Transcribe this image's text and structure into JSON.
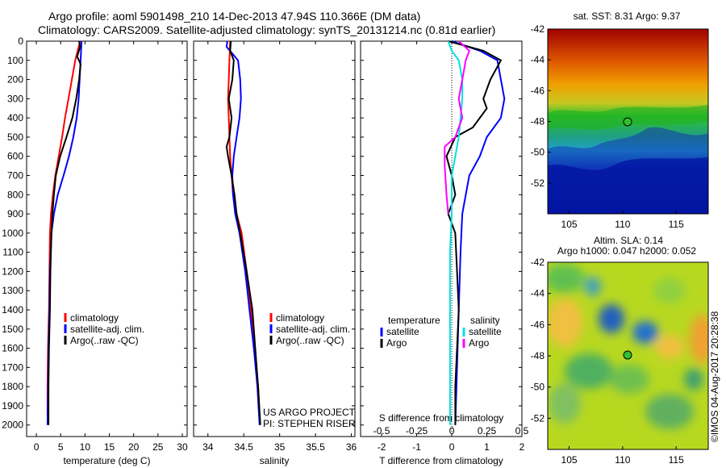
{
  "header": {
    "line1": "Argo profile: aoml 5901498_210 14-Dec-2013 47.94S 110.366E (DM data)",
    "line2": "Climatology: CARS2009. Satellite-adjusted climatology: synTS_20131214.nc (0.81d earlier)"
  },
  "colors": {
    "climatology": "#ff0000",
    "satellite": "#0000ff",
    "argo": "#000000",
    "sat_s": "#00e5e5",
    "argo_s": "#ff00ff"
  },
  "depth_axis": {
    "ticks": [
      0,
      100,
      200,
      300,
      400,
      500,
      600,
      700,
      800,
      900,
      1000,
      1100,
      1200,
      1300,
      1400,
      1500,
      1600,
      1700,
      1800,
      1900,
      2000
    ],
    "range": [
      0,
      2060
    ]
  },
  "chart_data": [
    {
      "type": "line",
      "xlabel": "temperature (deg C)",
      "xticks": [
        "0",
        "5",
        "10",
        "15",
        "20",
        "25",
        "30"
      ],
      "xlim": [
        -2,
        31
      ],
      "legend": [
        "climatology",
        "satellite-adj. clim.",
        "Argo(..raw -QC)"
      ],
      "series": [
        {
          "name": "climatology",
          "color": "red",
          "points": [
            [
              9.0,
              0
            ],
            [
              8.5,
              50
            ],
            [
              8.0,
              100
            ],
            [
              7.3,
              200
            ],
            [
              6.6,
              300
            ],
            [
              5.9,
              400
            ],
            [
              5.3,
              500
            ],
            [
              4.6,
              600
            ],
            [
              3.9,
              700
            ],
            [
              3.4,
              800
            ],
            [
              3.0,
              900
            ],
            [
              2.8,
              1000
            ],
            [
              2.7,
              1200
            ],
            [
              2.6,
              1400
            ],
            [
              2.4,
              1600
            ],
            [
              2.3,
              1800
            ],
            [
              2.3,
              1950
            ]
          ]
        },
        {
          "name": "satellite-adj. clim.",
          "color": "blue",
          "points": [
            [
              9.3,
              0
            ],
            [
              9.2,
              50
            ],
            [
              9.1,
              100
            ],
            [
              8.9,
              200
            ],
            [
              8.7,
              300
            ],
            [
              8.3,
              400
            ],
            [
              7.6,
              500
            ],
            [
              6.7,
              600
            ],
            [
              5.6,
              700
            ],
            [
              4.4,
              800
            ],
            [
              3.6,
              900
            ],
            [
              3.1,
              1000
            ],
            [
              2.8,
              1200
            ],
            [
              2.7,
              1400
            ],
            [
              2.5,
              1600
            ],
            [
              2.4,
              1800
            ],
            [
              2.3,
              2000
            ]
          ]
        },
        {
          "name": "Argo(..raw -QC)",
          "color": "black",
          "points": [
            [
              8.8,
              0
            ],
            [
              9.0,
              30
            ],
            [
              8.4,
              80
            ],
            [
              9.1,
              120
            ],
            [
              8.8,
              200
            ],
            [
              8.2,
              300
            ],
            [
              7.4,
              400
            ],
            [
              6.2,
              500
            ],
            [
              4.9,
              600
            ],
            [
              4.0,
              700
            ],
            [
              3.6,
              800
            ],
            [
              3.3,
              900
            ],
            [
              3.1,
              1000
            ],
            [
              2.9,
              1200
            ],
            [
              2.8,
              1400
            ],
            [
              2.6,
              1600
            ],
            [
              2.5,
              1800
            ],
            [
              2.5,
              2000
            ]
          ]
        }
      ]
    },
    {
      "type": "line",
      "xlabel": "salinity",
      "xticks": [
        "34",
        "34.5",
        "35",
        "35.5",
        "36"
      ],
      "xlim": [
        33.8,
        36.05
      ],
      "legend": [
        "climatology",
        "satellite-adj. clim.",
        "Argo(..raw -QC)"
      ],
      "series": [
        {
          "name": "climatology",
          "color": "red",
          "points": [
            [
              34.31,
              0
            ],
            [
              34.3,
              100
            ],
            [
              34.29,
              200
            ],
            [
              34.28,
              300
            ],
            [
              34.29,
              400
            ],
            [
              34.3,
              500
            ],
            [
              34.31,
              600
            ],
            [
              34.33,
              700
            ],
            [
              34.35,
              800
            ],
            [
              34.4,
              900
            ],
            [
              34.47,
              1000
            ],
            [
              34.54,
              1200
            ],
            [
              34.6,
              1400
            ],
            [
              34.65,
              1600
            ],
            [
              34.7,
              1800
            ],
            [
              34.72,
              1950
            ]
          ]
        },
        {
          "name": "satellite-adj. clim.",
          "color": "blue",
          "points": [
            [
              34.27,
              0
            ],
            [
              34.26,
              30
            ],
            [
              34.33,
              60
            ],
            [
              34.42,
              100
            ],
            [
              34.45,
              200
            ],
            [
              34.46,
              300
            ],
            [
              34.44,
              400
            ],
            [
              34.4,
              500
            ],
            [
              34.36,
              600
            ],
            [
              34.34,
              700
            ],
            [
              34.35,
              800
            ],
            [
              34.38,
              900
            ],
            [
              34.44,
              1000
            ],
            [
              34.52,
              1200
            ],
            [
              34.58,
              1400
            ],
            [
              34.64,
              1600
            ],
            [
              34.69,
              1800
            ],
            [
              34.72,
              2000
            ]
          ]
        },
        {
          "name": "Argo(..raw -QC)",
          "color": "black",
          "points": [
            [
              34.32,
              0
            ],
            [
              34.31,
              50
            ],
            [
              34.36,
              100
            ],
            [
              34.34,
              200
            ],
            [
              34.29,
              300
            ],
            [
              34.33,
              400
            ],
            [
              34.3,
              500
            ],
            [
              34.26,
              550
            ],
            [
              34.28,
              600
            ],
            [
              34.33,
              700
            ],
            [
              34.37,
              800
            ],
            [
              34.4,
              900
            ],
            [
              34.45,
              1000
            ],
            [
              34.54,
              1200
            ],
            [
              34.62,
              1400
            ],
            [
              34.66,
              1600
            ],
            [
              34.7,
              1800
            ],
            [
              34.73,
              2000
            ]
          ]
        }
      ],
      "annotations": [
        "US ARGO PROJECT",
        "PI: STEPHEN RISER"
      ]
    },
    {
      "type": "line",
      "xlabel": "T difference from climatology",
      "xlabel_top": "S difference from climatology",
      "xticks": [
        "-2",
        "-1",
        "0",
        "1",
        "2"
      ],
      "xticks_s": [
        "-0.5",
        "-0.25",
        "0",
        "0.25",
        "0.5"
      ],
      "xlim": [
        -2.6,
        2.0
      ],
      "legend": {
        "temperature_title": "temperature",
        "salinity_title": "salinity",
        "satellite": "satellite",
        "argo": "Argo"
      },
      "series": [
        {
          "name": "satellite",
          "color": "blue",
          "points": [
            [
              0,
              0
            ],
            [
              0.8,
              50
            ],
            [
              1.3,
              100
            ],
            [
              1.4,
              200
            ],
            [
              1.5,
              300
            ],
            [
              1.4,
              400
            ],
            [
              1.0,
              500
            ],
            [
              0.8,
              600
            ],
            [
              0.5,
              700
            ],
            [
              0.4,
              800
            ],
            [
              0.3,
              900
            ],
            [
              0.25,
              1100
            ],
            [
              0.2,
              1400
            ],
            [
              0.15,
              1700
            ],
            [
              0.1,
              2000
            ]
          ]
        },
        {
          "name": "Argo",
          "color": "black",
          "points": [
            [
              -0.1,
              0
            ],
            [
              0.9,
              50
            ],
            [
              1.4,
              100
            ],
            [
              1.1,
              200
            ],
            [
              0.9,
              300
            ],
            [
              1.0,
              350
            ],
            [
              0.6,
              450
            ],
            [
              0.1,
              500
            ],
            [
              -0.15,
              600
            ],
            [
              0.0,
              700
            ],
            [
              0.1,
              800
            ],
            [
              -0.1,
              900
            ],
            [
              0.1,
              1000
            ],
            [
              0.15,
              1200
            ],
            [
              0.2,
              1400
            ],
            [
              0.15,
              1600
            ],
            [
              0.1,
              1800
            ],
            [
              0.1,
              2000
            ]
          ]
        },
        {
          "name": "satellite",
          "color": "cyan",
          "points": [
            [
              -0.1,
              0
            ],
            [
              0.0,
              50
            ],
            [
              0.2,
              100
            ],
            [
              0.3,
              200
            ],
            [
              0.3,
              300
            ],
            [
              0.25,
              400
            ],
            [
              0.2,
              500
            ],
            [
              0.1,
              600
            ],
            [
              0.0,
              700
            ],
            [
              0.0,
              900
            ],
            [
              -0.05,
              1100
            ],
            [
              -0.05,
              1400
            ],
            [
              -0.05,
              1700
            ],
            [
              -0.05,
              2000
            ]
          ]
        },
        {
          "name": "Argo",
          "color": "magenta",
          "points": [
            [
              0.2,
              0
            ],
            [
              0.5,
              50
            ],
            [
              0.4,
              100
            ],
            [
              0.3,
              200
            ],
            [
              0.2,
              300
            ],
            [
              0.3,
              400
            ],
            [
              0.1,
              500
            ],
            [
              -0.2,
              550
            ],
            [
              -0.2,
              650
            ],
            [
              -0.15,
              800
            ],
            [
              -0.1,
              900
            ]
          ]
        }
      ]
    },
    {
      "type": "heatmap",
      "title": "sat. SST: 8.31  Argo: 9.37",
      "yticks": [
        "-42",
        "-44",
        "-46",
        "-48",
        "-50",
        "-52"
      ],
      "ylim": [
        -54,
        -42
      ],
      "xticks": [
        "105",
        "110",
        "115"
      ],
      "xlim": [
        103,
        118
      ],
      "marker": {
        "lon": 110.366,
        "lat": -47.94
      }
    },
    {
      "type": "heatmap",
      "title": "Altim. SLA: 0.14",
      "subtitle": "Argo h1000: 0.047 h2000: 0.052",
      "yticks": [
        "-42",
        "-44",
        "-46",
        "-48",
        "-50",
        "-52"
      ],
      "ylim": [
        -54,
        -42
      ],
      "xticks": [
        "105",
        "110",
        "115"
      ],
      "xlim": [
        103,
        118
      ],
      "marker": {
        "lon": 110.366,
        "lat": -47.94
      }
    }
  ],
  "footer": {
    "stamp": "©IMOS 04-Aug-2017 20:28:38"
  }
}
